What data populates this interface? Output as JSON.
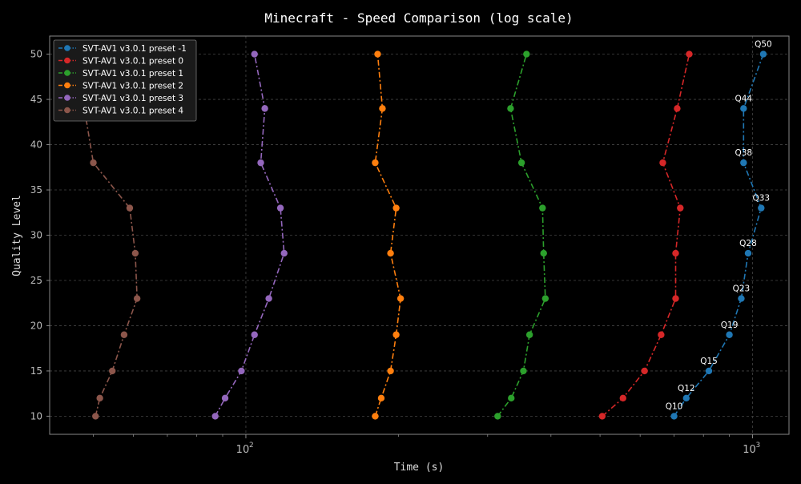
{
  "chart_data": {
    "type": "line",
    "title": "Minecraft - Speed Comparison (log scale)",
    "xlabel": "Time (s)",
    "ylabel": "Quality Level",
    "x_scale": "log",
    "xlim": [
      41,
      1180
    ],
    "ylim": [
      8,
      52
    ],
    "x_ticks": [
      100,
      1000
    ],
    "x_tick_labels": [
      "10",
      "10"
    ],
    "x_tick_exponents": [
      "2",
      "3"
    ],
    "y_ticks": [
      10,
      15,
      20,
      25,
      30,
      35,
      40,
      45,
      50
    ],
    "y_tick_labels": [
      "10",
      "15",
      "20",
      "25",
      "30",
      "35",
      "40",
      "45",
      "50"
    ],
    "grid": true,
    "legend_position": "top-left",
    "line_style": "dash-dot with circle markers",
    "y": [
      10,
      12,
      15,
      19,
      23,
      28,
      33,
      38,
      44,
      50
    ],
    "point_labels": [
      "Q10",
      "Q12",
      "Q15",
      "Q19",
      "Q23",
      "Q28",
      "Q33",
      "Q38",
      "Q44",
      "Q50"
    ],
    "series": [
      {
        "name": "SVT-AV1 v3.0.1 preset -1",
        "color": "#1f77b4",
        "x": [
          700,
          740,
          820,
          900,
          950,
          980,
          1040,
          960,
          960,
          1050
        ]
      },
      {
        "name": "SVT-AV1 v3.0.1 preset 0",
        "color": "#d62728",
        "x": [
          505,
          555,
          612,
          660,
          705,
          705,
          720,
          665,
          710,
          750
        ]
      },
      {
        "name": "SVT-AV1 v3.0.1 preset 1",
        "color": "#2ca02c",
        "x": [
          314,
          334,
          353,
          363,
          390,
          387,
          385,
          350,
          333,
          358
        ]
      },
      {
        "name": "SVT-AV1 v3.0.1 preset 2",
        "color": "#ff7f0e",
        "x": [
          180,
          185,
          193,
          198,
          202,
          193,
          198,
          180,
          186,
          182
        ]
      },
      {
        "name": "SVT-AV1 v3.0.1 preset 3",
        "color": "#9467bd",
        "x": [
          87,
          91,
          98,
          104,
          111,
          119,
          117,
          107,
          109,
          104
        ]
      },
      {
        "name": "SVT-AV1 v3.0.1 preset 4",
        "color": "#8c564b",
        "x": [
          50.5,
          51.5,
          54.5,
          57.5,
          61,
          60.5,
          59,
          50,
          48,
          47.5
        ]
      }
    ]
  },
  "colors": {
    "background": "#000000",
    "axes_frame": "#888888",
    "grid": "#444444",
    "tick_text": "#bbbbbb",
    "label_text": "#dddddd",
    "legend_bg": "#1a1a1a",
    "legend_border": "#777777"
  }
}
